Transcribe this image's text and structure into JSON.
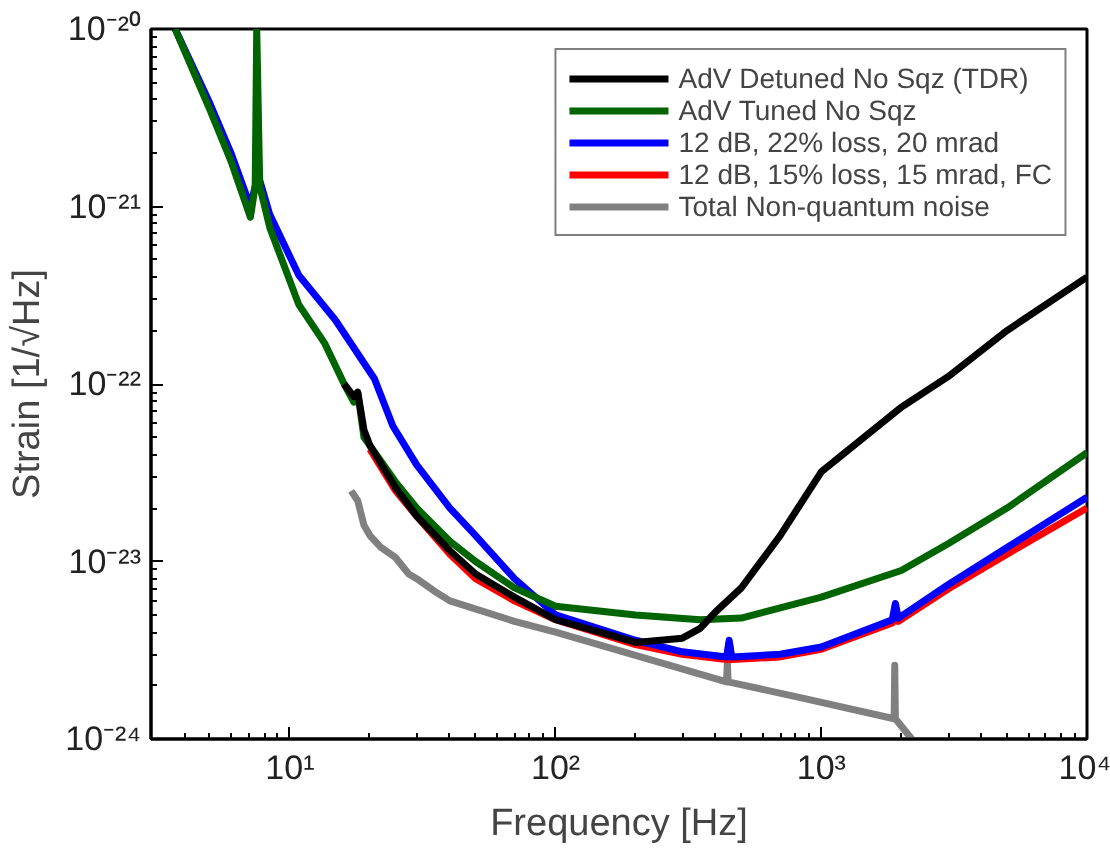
{
  "chart_data": {
    "type": "line",
    "xlabel": "Frequency [Hz]",
    "ylabel": "Strain [1/√Hz]",
    "log": "xy",
    "grid": false,
    "legend": "top right",
    "line_style": "solid",
    "marker": "none",
    "xlim": [
      3,
      10000
    ],
    "ylim": [
      1e-24,
      1e-20
    ],
    "xticks": [
      {
        "value": 10,
        "label": "10¹"
      },
      {
        "value": 100,
        "label": "10²"
      },
      {
        "value": 1000,
        "label": "10³"
      },
      {
        "value": 10000,
        "label": "10⁴"
      }
    ],
    "yticks": [
      {
        "value": 1e-24,
        "label": "10⁻²⁴"
      },
      {
        "value": 1e-23,
        "label": "10⁻²³"
      },
      {
        "value": 1e-22,
        "label": "10⁻²²"
      },
      {
        "value": 1e-21,
        "label": "10⁻²¹"
      },
      {
        "value": 1e-20,
        "label": "10⁻²⁰"
      }
    ],
    "series": [
      {
        "name": "AdV Detuned No Sqz (TDR)",
        "color": "#000000",
        "x": [
          16,
          17.4,
          18,
          19,
          20,
          25,
          30,
          40,
          50,
          70,
          100,
          200,
          300,
          350,
          400,
          500,
          700,
          1000,
          2000,
          3000,
          5000,
          10000
        ],
        "values": [
          1e-22,
          8.5e-23,
          9e-23,
          5.5e-23,
          4.5e-23,
          2.6e-23,
          1.8e-23,
          1.15e-23,
          8.5e-24,
          6.3e-24,
          4.7e-24,
          3.5e-24,
          3.7e-24,
          4.2e-24,
          5.2e-24,
          7.1e-24,
          1.4e-23,
          3.2e-23,
          7.4e-23,
          1.1e-22,
          2e-22,
          4e-22
        ]
      },
      {
        "name": "AdV Tuned No Sqz",
        "color": "#006400",
        "x": [
          3.7,
          5,
          6,
          7.1,
          7.4,
          7.5,
          7.7,
          8.4,
          10.8,
          13.5,
          16,
          17.4,
          18,
          19,
          20,
          25,
          30,
          40,
          50,
          70,
          100,
          200,
          350,
          500,
          1000,
          2000,
          3000,
          5000,
          10000
        ],
        "values": [
          1e-20,
          3.5e-21,
          1.8e-21,
          8.7e-22,
          1.3e-21,
          1e-20,
          1.3e-21,
          7.6e-22,
          2.8e-22,
          1.7e-22,
          1e-22,
          7.9e-23,
          8.9e-23,
          5e-23,
          4.5e-23,
          2.8e-23,
          2e-23,
          1.3e-23,
          1e-23,
          7.1e-24,
          5.6e-24,
          5e-24,
          4.7e-24,
          4.8e-24,
          6.3e-24,
          8.9e-24,
          1.26e-23,
          2e-23,
          4.1e-23
        ]
      },
      {
        "name": "12 dB, 22% loss, 20 mrad",
        "color": "#0000ff",
        "x": [
          3.7,
          5,
          6,
          7.1,
          7.4,
          7.7,
          8.4,
          10.8,
          14.8,
          20.8,
          24.4,
          30,
          40,
          50,
          70,
          100,
          200,
          300,
          440,
          450,
          460,
          700,
          1000,
          1850,
          1900,
          1950,
          3000,
          5000,
          10000
        ],
        "values": [
          1e-20,
          3.8e-21,
          2e-21,
          1e-21,
          1.3e-21,
          1.4e-21,
          9e-22,
          4.1e-22,
          2.3e-22,
          1.07e-22,
          5.8e-23,
          3.5e-23,
          2e-23,
          1.4e-23,
          8e-24,
          5e-24,
          3.6e-24,
          3.1e-24,
          2.9e-24,
          3.6e-24,
          2.9e-24,
          3e-24,
          3.3e-24,
          4.7e-24,
          5.8e-24,
          4.8e-24,
          7.4e-24,
          1.2e-23,
          2.3e-23
        ]
      },
      {
        "name": "12 dB, 15% loss, 15 mrad, FC",
        "color": "#ff0000",
        "x": [
          20,
          25,
          30,
          40,
          50,
          70,
          100,
          200,
          300,
          440,
          450,
          460,
          700,
          1000,
          1850,
          1900,
          1950,
          3000,
          5000,
          10000
        ],
        "values": [
          4.3e-23,
          2.5e-23,
          1.8e-23,
          1.1e-23,
          8e-24,
          6e-24,
          4.7e-24,
          3.4e-24,
          3e-24,
          2.8e-24,
          3.5e-24,
          2.8e-24,
          2.9e-24,
          3.2e-24,
          4.5e-24,
          5.6e-24,
          4.6e-24,
          7e-24,
          1.1e-23,
          2e-23
        ]
      },
      {
        "name": "Total Non-quantum noise",
        "color": "#808080",
        "x": [
          17,
          18,
          19,
          20,
          22,
          25,
          28,
          30,
          35,
          40,
          70,
          100,
          440,
          443,
          446,
          850,
          1880,
          1890,
          1900,
          2190
        ],
        "values": [
          2.5e-23,
          2.2e-23,
          1.6e-23,
          1.4e-23,
          1.2e-23,
          1.05e-23,
          8.5e-24,
          8e-24,
          6.8e-24,
          6e-24,
          4.6e-24,
          4e-24,
          2.1e-24,
          2.7e-24,
          2.1e-24,
          1.7e-24,
          1.3e-24,
          2.6e-24,
          1.3e-24,
          1e-24
        ]
      }
    ]
  }
}
